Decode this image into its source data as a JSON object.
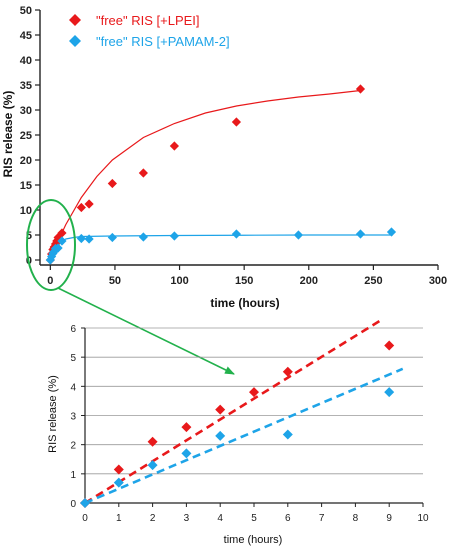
{
  "colors": {
    "lpei": "#e8191b",
    "pamam": "#1ea4e8",
    "annotation": "#22b14c",
    "grid": "#9a9a9a",
    "axis": "#222222"
  },
  "chart_data": [
    {
      "type": "scatter",
      "xlabel": "time (hours)",
      "ylabel": "RIS release (%)",
      "xlim": [
        -8,
        300
      ],
      "ylim": [
        -1,
        50
      ],
      "xticks": [
        0,
        50,
        100,
        150,
        200,
        250,
        300
      ],
      "yticks": [
        0,
        5,
        10,
        15,
        20,
        25,
        30,
        35,
        40,
        45,
        50
      ],
      "grid": false,
      "legend": {
        "placement": "top-left"
      },
      "series": [
        {
          "name": "\"free\" RIS [+LPEI]",
          "color": "#e8191b",
          "marker": "diamond",
          "fit": "exponential-plateau",
          "points": [
            [
              0,
              0
            ],
            [
              1,
              1.2
            ],
            [
              2,
              2.1
            ],
            [
              3,
              2.6
            ],
            [
              4,
              3.2
            ],
            [
              5,
              3.8
            ],
            [
              6,
              4.5
            ],
            [
              9,
              5.4
            ],
            [
              24,
              10.5
            ],
            [
              30,
              11.2
            ],
            [
              48,
              15.3
            ],
            [
              72,
              17.4
            ],
            [
              96,
              22.8
            ],
            [
              144,
              27.6
            ],
            [
              240,
              34.2
            ]
          ],
          "fit_curve": [
            [
              0,
              0
            ],
            [
              6,
              3.8
            ],
            [
              12,
              7.1
            ],
            [
              24,
              12.5
            ],
            [
              36,
              16.7
            ],
            [
              48,
              20.0
            ],
            [
              72,
              24.5
            ],
            [
              96,
              27.3
            ],
            [
              120,
              29.4
            ],
            [
              144,
              30.8
            ],
            [
              168,
              31.8
            ],
            [
              192,
              32.6
            ],
            [
              216,
              33.2
            ],
            [
              240,
              33.9
            ]
          ]
        },
        {
          "name": "\"free\" RIS [+PAMAM-2]",
          "color": "#1ea4e8",
          "marker": "diamond",
          "fit": "exponential-plateau",
          "points": [
            [
              0,
              0
            ],
            [
              1,
              0.7
            ],
            [
              2,
              1.3
            ],
            [
              3,
              1.7
            ],
            [
              4,
              2.3
            ],
            [
              6,
              2.4
            ],
            [
              9,
              3.8
            ],
            [
              24,
              4.3
            ],
            [
              30,
              4.2
            ],
            [
              48,
              4.5
            ],
            [
              72,
              4.6
            ],
            [
              96,
              4.8
            ],
            [
              144,
              5.2
            ],
            [
              192,
              5.0
            ],
            [
              240,
              5.2
            ],
            [
              264,
              5.6
            ]
          ],
          "fit_curve": [
            [
              0,
              0
            ],
            [
              3,
              2.0
            ],
            [
              6,
              3.1
            ],
            [
              9,
              3.8
            ],
            [
              12,
              4.2
            ],
            [
              18,
              4.5
            ],
            [
              24,
              4.7
            ],
            [
              48,
              4.8
            ],
            [
              96,
              4.9
            ],
            [
              150,
              4.95
            ],
            [
              200,
              5.0
            ],
            [
              265,
              5.0
            ]
          ]
        }
      ]
    },
    {
      "type": "scatter",
      "xlabel": "time (hours)",
      "ylabel": "RIS release (%)",
      "xlim": [
        0,
        10
      ],
      "ylim": [
        0,
        6
      ],
      "xticks": [
        0,
        1,
        2,
        3,
        4,
        5,
        6,
        7,
        8,
        9,
        10
      ],
      "yticks": [
        0,
        1,
        2,
        3,
        4,
        5,
        6
      ],
      "grid": true,
      "series": [
        {
          "color": "#e8191b",
          "marker": "diamond",
          "trend": "linear",
          "points": [
            [
              0,
              0
            ],
            [
              1,
              1.15
            ],
            [
              2,
              2.1
            ],
            [
              3,
              2.6
            ],
            [
              4,
              3.2
            ],
            [
              5,
              3.8
            ],
            [
              6,
              4.5
            ],
            [
              9,
              5.4
            ]
          ],
          "trend_line": [
            [
              0,
              0
            ],
            [
              8.8,
              6.3
            ]
          ]
        },
        {
          "color": "#1ea4e8",
          "marker": "diamond",
          "trend": "linear",
          "points": [
            [
              0,
              0
            ],
            [
              1,
              0.7
            ],
            [
              2,
              1.3
            ],
            [
              3,
              1.7
            ],
            [
              4,
              2.3
            ],
            [
              6,
              2.35
            ],
            [
              9,
              3.8
            ]
          ],
          "trend_line": [
            [
              0,
              0
            ],
            [
              9.4,
              4.6
            ]
          ]
        }
      ]
    }
  ]
}
